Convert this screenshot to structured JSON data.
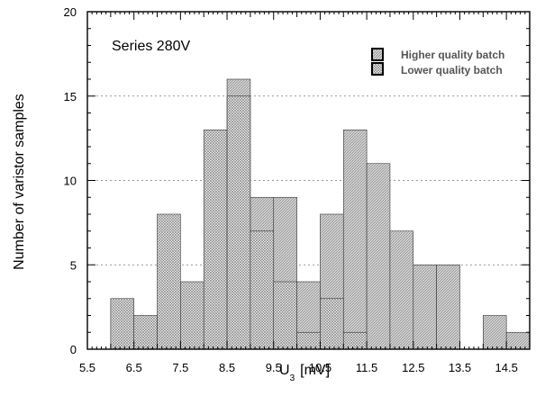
{
  "chart_data": {
    "type": "bar",
    "annotation": "Series 280V",
    "xlabel_main": "U",
    "xlabel_sub": "3",
    "xlabel_unit": "[mV]",
    "ylabel": "Number of varistor samples",
    "xlim": [
      5.5,
      15.0
    ],
    "ylim": [
      0,
      20
    ],
    "x_ticks": [
      "5.5",
      "6.5",
      "7.5",
      "8.5",
      "9.5",
      "10.5",
      "11.5",
      "12.5",
      "13.5",
      "14.5"
    ],
    "x_ticks_minor": [
      "6",
      "7",
      "8",
      "9",
      "10",
      "11",
      "12",
      "13",
      "14"
    ],
    "y_ticks": [
      "0",
      "5",
      "10",
      "15",
      "20"
    ],
    "grid": "horizontal dashed",
    "legend_position": "top-right",
    "bin_width": 0.5,
    "series": [
      {
        "name": "Higher quality batch",
        "color": "#c8c8c8",
        "bins": [
          {
            "x0": 8.5,
            "value": 16
          },
          {
            "x0": 9.0,
            "value": 9
          },
          {
            "x0": 9.5,
            "value": 9
          },
          {
            "x0": 10.0,
            "value": 4
          },
          {
            "x0": 10.5,
            "value": 8
          },
          {
            "x0": 11.0,
            "value": 13
          },
          {
            "x0": 11.5,
            "value": 11
          },
          {
            "x0": 12.0,
            "value": 7
          },
          {
            "x0": 12.5,
            "value": 5
          },
          {
            "x0": 13.0,
            "value": 5
          },
          {
            "x0": 14.0,
            "value": 2
          },
          {
            "x0": 14.5,
            "value": 1
          }
        ]
      },
      {
        "name": "Lower quality batch",
        "color": "#e8e8e8",
        "bins": [
          {
            "x0": 6.0,
            "value": 3
          },
          {
            "x0": 6.5,
            "value": 2
          },
          {
            "x0": 7.0,
            "value": 8
          },
          {
            "x0": 7.5,
            "value": 4
          },
          {
            "x0": 8.0,
            "value": 13
          },
          {
            "x0": 8.5,
            "value": 15
          },
          {
            "x0": 9.0,
            "value": 7
          },
          {
            "x0": 9.5,
            "value": 4
          },
          {
            "x0": 10.0,
            "value": 1
          },
          {
            "x0": 10.5,
            "value": 3
          },
          {
            "x0": 11.0,
            "value": 1
          }
        ]
      }
    ]
  }
}
